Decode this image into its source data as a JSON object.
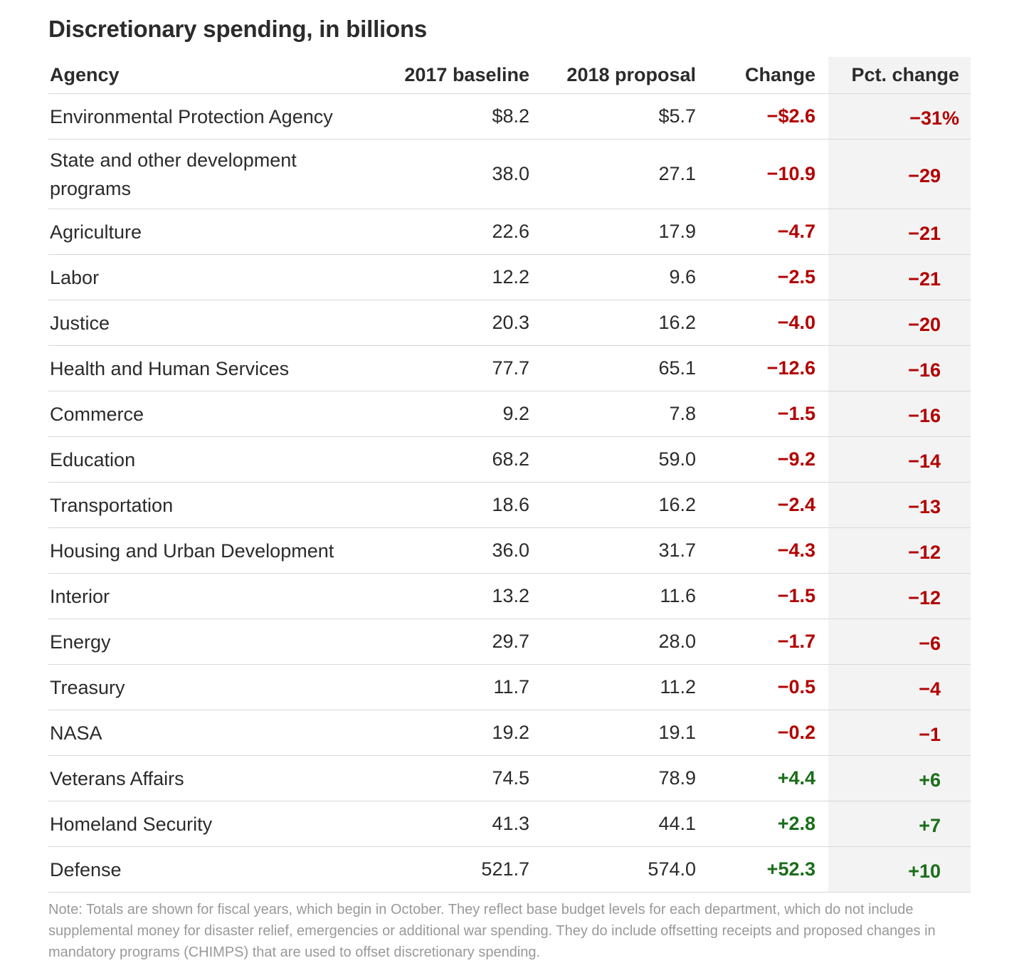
{
  "colors": {
    "negative": "#b30000",
    "positive": "#1a6e1a",
    "text": "#2b2b2b",
    "note": "#999999",
    "highlight_column": "#f3f3f3"
  },
  "chart_data": {
    "type": "table",
    "title": "Discretionary spending, in billions",
    "columns": [
      "Agency",
      "2017 baseline",
      "2018 proposal",
      "Change",
      "Pct. change"
    ],
    "rows": [
      {
        "agency": "Environmental Protection Agency",
        "baseline": "$8.2",
        "proposal": "$5.7",
        "change": "−$2.6",
        "pct": "−31%",
        "sign": "negative"
      },
      {
        "agency": "State and other development programs",
        "baseline": "38.0",
        "proposal": "27.1",
        "change": "−10.9",
        "pct": "−29",
        "sign": "negative"
      },
      {
        "agency": "Agriculture",
        "baseline": "22.6",
        "proposal": "17.9",
        "change": "−4.7",
        "pct": "−21",
        "sign": "negative"
      },
      {
        "agency": "Labor",
        "baseline": "12.2",
        "proposal": "9.6",
        "change": "−2.5",
        "pct": "−21",
        "sign": "negative"
      },
      {
        "agency": "Justice",
        "baseline": "20.3",
        "proposal": "16.2",
        "change": "−4.0",
        "pct": "−20",
        "sign": "negative"
      },
      {
        "agency": "Health and Human Services",
        "baseline": "77.7",
        "proposal": "65.1",
        "change": "−12.6",
        "pct": "−16",
        "sign": "negative"
      },
      {
        "agency": "Commerce",
        "baseline": "9.2",
        "proposal": "7.8",
        "change": "−1.5",
        "pct": "−16",
        "sign": "negative"
      },
      {
        "agency": "Education",
        "baseline": "68.2",
        "proposal": "59.0",
        "change": "−9.2",
        "pct": "−14",
        "sign": "negative"
      },
      {
        "agency": "Transportation",
        "baseline": "18.6",
        "proposal": "16.2",
        "change": "−2.4",
        "pct": "−13",
        "sign": "negative"
      },
      {
        "agency": "Housing and Urban Development",
        "baseline": "36.0",
        "proposal": "31.7",
        "change": "−4.3",
        "pct": "−12",
        "sign": "negative"
      },
      {
        "agency": "Interior",
        "baseline": "13.2",
        "proposal": "11.6",
        "change": "−1.5",
        "pct": "−12",
        "sign": "negative"
      },
      {
        "agency": "Energy",
        "baseline": "29.7",
        "proposal": "28.0",
        "change": "−1.7",
        "pct": "−6",
        "sign": "negative"
      },
      {
        "agency": "Treasury",
        "baseline": "11.7",
        "proposal": "11.2",
        "change": "−0.5",
        "pct": "−4",
        "sign": "negative"
      },
      {
        "agency": "NASA",
        "baseline": "19.2",
        "proposal": "19.1",
        "change": "−0.2",
        "pct": "−1",
        "sign": "negative"
      },
      {
        "agency": "Veterans Affairs",
        "baseline": "74.5",
        "proposal": "78.9",
        "change": "+4.4",
        "pct": "+6",
        "sign": "positive"
      },
      {
        "agency": "Homeland Security",
        "baseline": "41.3",
        "proposal": "44.1",
        "change": "+2.8",
        "pct": "+7",
        "sign": "positive"
      },
      {
        "agency": "Defense",
        "baseline": "521.7",
        "proposal": "574.0",
        "change": "+52.3",
        "pct": "+10",
        "sign": "positive"
      }
    ],
    "note": "Note: Totals are shown for fiscal years, which begin in October. They reflect base budget levels for each department, which do not include supplemental money for disaster relief, emergencies or additional war spending. They do include offsetting receipts and proposed changes in mandatory programs (CHIMPS) that are used to offset discretionary spending."
  }
}
